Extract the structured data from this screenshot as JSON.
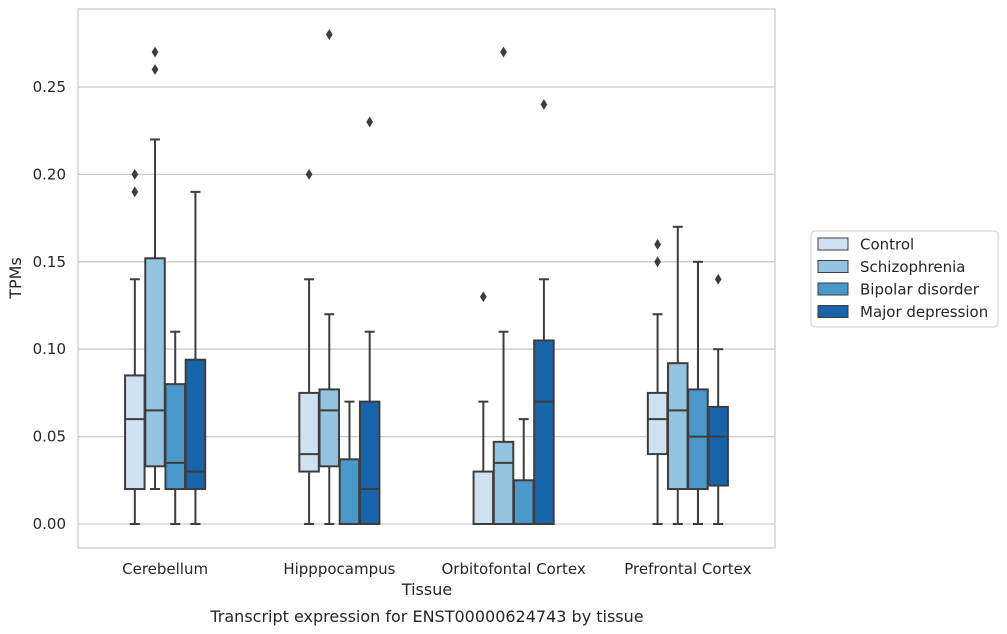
{
  "chart_data": {
    "type": "box",
    "title": "",
    "caption": "Transcript expression for ENST00000624743 by tissue",
    "xlabel": "Tissue",
    "ylabel": "TPMs",
    "ylim": [
      -0.013,
      0.295
    ],
    "yticks": [
      0.0,
      0.05,
      0.1,
      0.15,
      0.2,
      0.25
    ],
    "ytick_labels": [
      "0.00",
      "0.05",
      "0.10",
      "0.15",
      "0.20",
      "0.25"
    ],
    "grid": true,
    "legend_position": "right",
    "categories": [
      "Cerebellum",
      "Hipppocampus",
      "Orbitofontal Cortex",
      "Prefrontal Cortex"
    ],
    "series": [
      {
        "name": "Control",
        "color": "#d0e1f2",
        "boxes": [
          {
            "whislo": 0.0,
            "q1": 0.02,
            "med": 0.06,
            "q3": 0.085,
            "whishi": 0.14,
            "fliers": [
              0.19,
              0.2
            ]
          },
          {
            "whislo": 0.0,
            "q1": 0.03,
            "med": 0.04,
            "q3": 0.075,
            "whishi": 0.14,
            "fliers": [
              0.2
            ]
          },
          {
            "whislo": 0.0,
            "q1": 0.0,
            "med": 0.0,
            "q3": 0.03,
            "whishi": 0.07,
            "fliers": [
              0.13
            ]
          },
          {
            "whislo": 0.0,
            "q1": 0.04,
            "med": 0.06,
            "q3": 0.075,
            "whishi": 0.12,
            "fliers": [
              0.15,
              0.16
            ]
          }
        ]
      },
      {
        "name": "Schizophrenia",
        "color": "#94c4df",
        "boxes": [
          {
            "whislo": 0.02,
            "q1": 0.033,
            "med": 0.065,
            "q3": 0.152,
            "whishi": 0.22,
            "fliers": [
              0.26,
              0.27
            ]
          },
          {
            "whislo": 0.0,
            "q1": 0.033,
            "med": 0.065,
            "q3": 0.077,
            "whishi": 0.12,
            "fliers": [
              0.28
            ]
          },
          {
            "whislo": 0.0,
            "q1": 0.0,
            "med": 0.035,
            "q3": 0.047,
            "whishi": 0.11,
            "fliers": [
              0.27
            ]
          },
          {
            "whislo": 0.0,
            "q1": 0.02,
            "med": 0.065,
            "q3": 0.092,
            "whishi": 0.17,
            "fliers": []
          }
        ]
      },
      {
        "name": "Bipolar disorder",
        "color": "#4a98c9",
        "boxes": [
          {
            "whislo": 0.0,
            "q1": 0.02,
            "med": 0.035,
            "q3": 0.08,
            "whishi": 0.11,
            "fliers": []
          },
          {
            "whislo": 0.0,
            "q1": 0.0,
            "med": 0.0,
            "q3": 0.037,
            "whishi": 0.07,
            "fliers": []
          },
          {
            "whislo": 0.0,
            "q1": 0.0,
            "med": 0.0,
            "q3": 0.025,
            "whishi": 0.06,
            "fliers": []
          },
          {
            "whislo": 0.0,
            "q1": 0.02,
            "med": 0.05,
            "q3": 0.077,
            "whishi": 0.15,
            "fliers": []
          }
        ]
      },
      {
        "name": "Major depression",
        "color": "#1764ab",
        "boxes": [
          {
            "whislo": 0.0,
            "q1": 0.02,
            "med": 0.03,
            "q3": 0.094,
            "whishi": 0.19,
            "fliers": []
          },
          {
            "whislo": 0.0,
            "q1": 0.0,
            "med": 0.02,
            "q3": 0.07,
            "whishi": 0.11,
            "fliers": [
              0.23
            ]
          },
          {
            "whislo": 0.0,
            "q1": 0.0,
            "med": 0.07,
            "q3": 0.105,
            "whishi": 0.14,
            "fliers": [
              0.24
            ]
          },
          {
            "whislo": 0.0,
            "q1": 0.022,
            "med": 0.05,
            "q3": 0.067,
            "whishi": 0.1,
            "fliers": [
              0.14
            ]
          }
        ]
      }
    ]
  }
}
